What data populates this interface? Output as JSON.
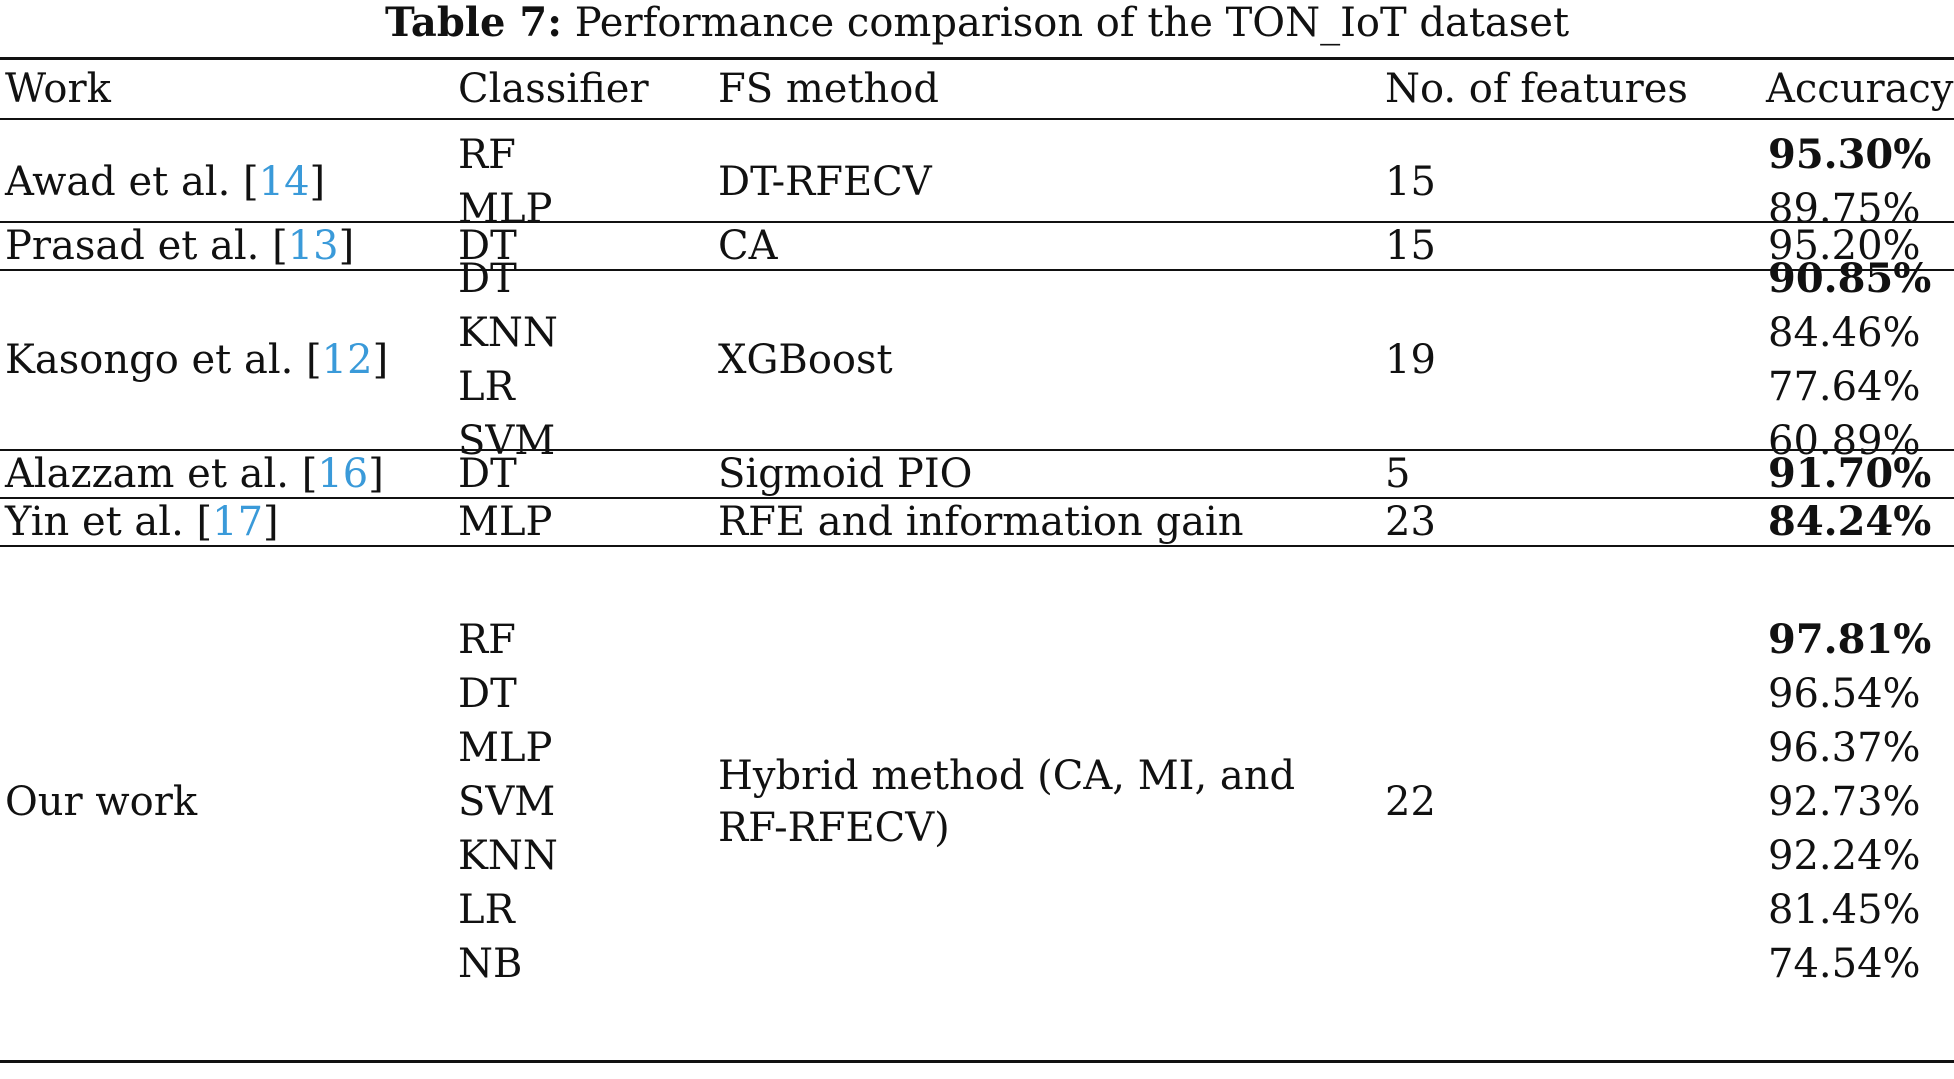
{
  "caption": {
    "label": "Table 7:",
    "text": "Performance comparison of the TON_IoT dataset"
  },
  "table": {
    "headers": {
      "work": "Work",
      "classifier": "Classifier",
      "fs_method": "FS method",
      "num_features": "No. of features",
      "accuracy": "Accuracy"
    },
    "rows": [
      {
        "work": "Awad et al.",
        "ref": "14",
        "classifiers": [
          "RF",
          "MLP"
        ],
        "fs_method": "DT-RFECV",
        "num_features": "15",
        "accuracies": [
          "95.30%",
          "89.75%"
        ],
        "best_index": 0
      },
      {
        "work": "Prasad et al.",
        "ref": "13",
        "classifiers": [
          "DT"
        ],
        "fs_method": "CA",
        "num_features": "15",
        "accuracies": [
          "95.20%"
        ],
        "best_index": -1
      },
      {
        "work": "Kasongo et al.",
        "ref": "12",
        "classifiers": [
          "DT",
          "KNN",
          "LR",
          "SVM"
        ],
        "fs_method": "XGBoost",
        "num_features": "19",
        "accuracies": [
          "90.85%",
          "84.46%",
          "77.64%",
          "60.89%"
        ],
        "best_index": 0
      },
      {
        "work": "Alazzam et al.",
        "ref": "16",
        "classifiers": [
          "DT"
        ],
        "fs_method": "Sigmoid PIO",
        "num_features": "5",
        "accuracies": [
          "91.70%"
        ],
        "best_index": 0
      },
      {
        "work": "Yin et al.",
        "ref": "17",
        "classifiers": [
          "MLP"
        ],
        "fs_method": "RFE and information gain",
        "num_features": "23",
        "accuracies": [
          "84.24%"
        ],
        "best_index": 0
      },
      {
        "work": "Our work",
        "ref": "",
        "classifiers": [
          "RF",
          "DT",
          "MLP",
          "SVM",
          "KNN",
          "LR",
          "NB"
        ],
        "fs_method": "Hybrid method (CA, MI, and RF-RFECV)",
        "num_features": "22",
        "accuracies": [
          "97.81%",
          "96.54%",
          "96.37%",
          "92.73%",
          "92.24%",
          "81.45%",
          "74.54%"
        ],
        "best_index": 0
      }
    ]
  },
  "colors": {
    "text": "#111111",
    "reference_link": "#3a9ad9"
  }
}
